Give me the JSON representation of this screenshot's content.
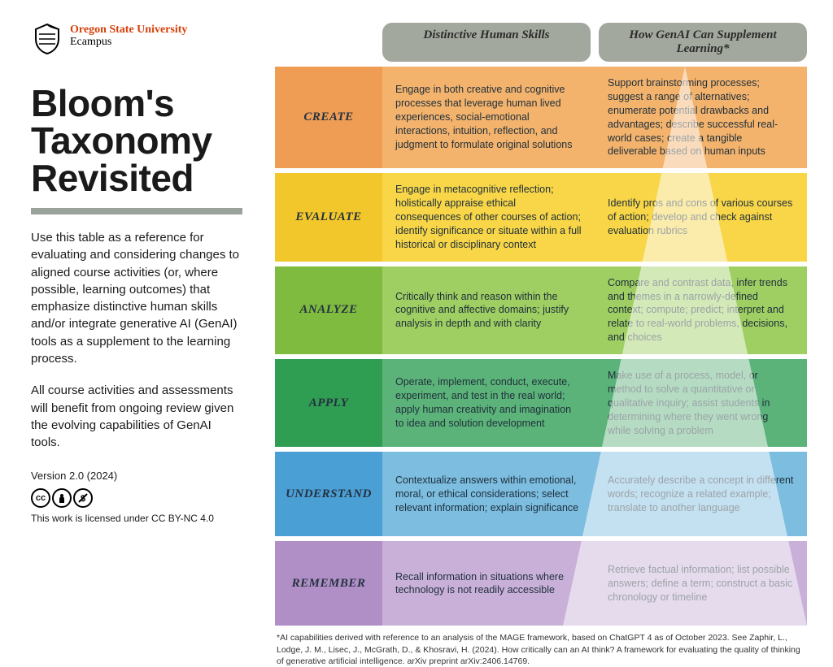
{
  "org": {
    "name": "Oregon State University",
    "sub": "Ecampus"
  },
  "title_line1": "Bloom's",
  "title_line2": "Taxonomy",
  "title_line3": "Revisited",
  "intro_p1": "Use this table as a reference for evaluating and considering changes to aligned course activities (or, where possible, learning outcomes) that emphasize distinctive human skills and/or integrate generative AI (GenAI) tools as a supplement to the learning process.",
  "intro_p2": "All course activities and assessments will benefit from ongoing review given the evolving capabilities of GenAI tools.",
  "version": "Version 2.0 (2024)",
  "license_text": "This work is licensed under CC BY-NC 4.0",
  "license_badges": [
    "CC",
    "BY",
    "NC"
  ],
  "headers": {
    "human": "Distinctive Human Skills",
    "genai": "How GenAI Can Supplement Learning*"
  },
  "rows": [
    {
      "label": "CREATE",
      "colors": {
        "label_bg": "#ef9d54",
        "human_bg": "#f4b36d",
        "genai_bg": "#f4b36d"
      },
      "human": "Engage in both creative and cognitive processes that leverage human lived experiences, social-emotional interactions, intuition, reflection, and judgment to formulate original solutions",
      "genai": "Support brainstorming processes; suggest a range of alternatives; enumerate potential drawbacks and advantages; describe successful real-world cases; create a tangible deliverable based on human inputs"
    },
    {
      "label": "EVALUATE",
      "colors": {
        "label_bg": "#f2c72b",
        "human_bg": "#f8d648",
        "genai_bg": "#f8d648"
      },
      "human": "Engage in metacognitive reflection; holistically appraise ethical consequences of other courses of action; identify significance or situate within a full historical or disciplinary context",
      "genai": "Identify pros and cons of various courses of action; develop and check against evaluation rubrics"
    },
    {
      "label": "ANALYZE",
      "colors": {
        "label_bg": "#7fbb3f",
        "human_bg": "#9fcf62",
        "genai_bg": "#9fcf62"
      },
      "human": "Critically think and reason within the cognitive and affective domains; justify analysis in depth and with clarity",
      "genai": "Compare and contrast data, infer trends and themes in a narrowly-defined context; compute; predict; interpret and relate to real-world problems, decisions, and choices"
    },
    {
      "label": "APPLY",
      "colors": {
        "label_bg": "#2f9e52",
        "human_bg": "#5cb37a",
        "genai_bg": "#5cb37a"
      },
      "human": "Operate, implement, conduct, execute, experiment, and test in the real world; apply human creativity and imagination to idea and solution development",
      "genai": "Make use of a process, model, or method to solve a quantitative or qualitative inquiry; assist students in determining where they went wrong while solving a problem"
    },
    {
      "label": "UNDERSTAND",
      "colors": {
        "label_bg": "#4a9fd4",
        "human_bg": "#7cbde0",
        "genai_bg": "#7cbde0"
      },
      "human": "Contextualize answers within emotional, moral, or ethical considerations; select relevant information; explain significance",
      "genai": "Accurately describe a concept in different words; recognize a related example; translate to another language"
    },
    {
      "label": "REMEMBER",
      "colors": {
        "label_bg": "#b08fc6",
        "human_bg": "#c9b0d9",
        "genai_bg": "#c9b0d9"
      },
      "human": "Recall information in situations where technology is not readily accessible",
      "genai": "Retrieve factual information; list possible answers; define a term; construct a basic chronology or timeline"
    }
  ],
  "citation": "*AI capabilities derived with reference to an analysis of the MAGE framework, based on ChatGPT 4 as of October 2023. See Zaphir, L., Lodge, J. M., Lisec, J., McGrath, D., & Khosravi, H. (2024). How critically can an AI think? A framework for evaluating the quality of thinking of generative artificial intelligence. arXiv preprint arXiv:2406.14769."
}
